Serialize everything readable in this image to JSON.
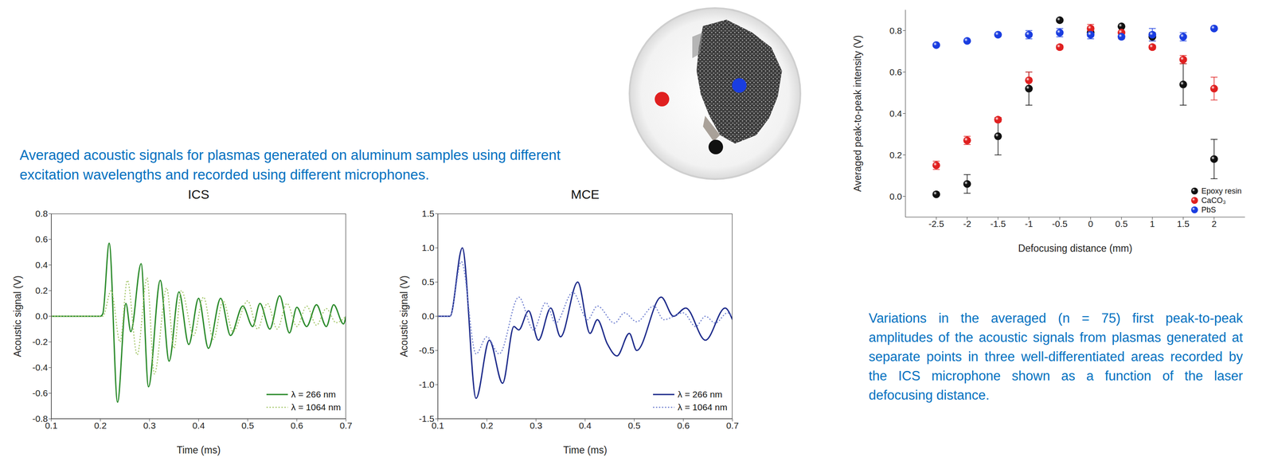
{
  "caption_left": "Averaged acoustic signals for plasmas generated on aluminum samples using different excitation wavelengths and recorded using different microphones.",
  "caption_right": "Variations in the averaged (n = 75) first peak-to-peak amplitudes of the acoustic signals from plasmas generated at separate points in three well-differentiated areas recorded by the ICS microphone shown as a function of the laser defocusing distance.",
  "chart_data": [
    {
      "type": "line",
      "title": "ICS",
      "x_label": "Time (ms)",
      "y_label": "Acoustic signal (V)",
      "xlim": [
        0.1,
        0.7
      ],
      "xticks": [
        0.1,
        0.2,
        0.3,
        0.4,
        0.5,
        0.6,
        0.7
      ],
      "ylim": [
        -0.8,
        0.8
      ],
      "yticks": [
        -0.8,
        -0.6,
        -0.4,
        -0.2,
        {
          "value": 0,
          "label": "0.0"
        },
        0.2,
        0.4,
        0.6,
        0.8
      ],
      "grid": false,
      "legend": "lower right",
      "series": [
        {
          "name": "λ = 266 nm",
          "color": "#2a8a2a",
          "line_style": "solid",
          "x": [
            0.1,
            0.2,
            0.205,
            0.218,
            0.235,
            0.252,
            0.262,
            0.283,
            0.298,
            0.322,
            0.34,
            0.36,
            0.38,
            0.4,
            0.42,
            0.445,
            0.465,
            0.49,
            0.51,
            0.525,
            0.545,
            0.565,
            0.585,
            0.6,
            0.62,
            0.64,
            0.66,
            0.675,
            0.695,
            0.7
          ],
          "values": [
            0,
            0,
            0.02,
            0.57,
            -0.67,
            0.1,
            -0.12,
            0.41,
            -0.55,
            0.28,
            -0.35,
            0.19,
            -0.22,
            0.14,
            -0.25,
            0.14,
            -0.15,
            0.08,
            -0.08,
            0.1,
            -0.1,
            0.16,
            -0.13,
            0.07,
            -0.08,
            0.09,
            -0.08,
            0.09,
            -0.06,
            0.0
          ]
        },
        {
          "name": "λ = 1064 nm",
          "color": "#a5c76a",
          "line_style": "dotted",
          "x": [
            0.1,
            0.205,
            0.222,
            0.24,
            0.255,
            0.275,
            0.295,
            0.31,
            0.335,
            0.35,
            0.365,
            0.39,
            0.41,
            0.43,
            0.45,
            0.47,
            0.5,
            0.52,
            0.54,
            0.56,
            0.58,
            0.6,
            0.62,
            0.64,
            0.66,
            0.68,
            0.7
          ],
          "values": [
            0,
            0,
            0.2,
            -0.2,
            0.28,
            -0.3,
            0.3,
            -0.45,
            0.22,
            -0.25,
            0.2,
            -0.15,
            0.15,
            -0.18,
            0.12,
            -0.12,
            0.12,
            -0.1,
            0.1,
            -0.1,
            0.1,
            -0.08,
            0.08,
            -0.07,
            0.06,
            -0.05,
            0.0
          ]
        }
      ]
    },
    {
      "type": "line",
      "title": "MCE",
      "x_label": "Time (ms)",
      "y_label": "Acoustic signal (V)",
      "xlim": [
        0.1,
        0.7
      ],
      "xticks": [
        0.1,
        0.2,
        0.3,
        0.4,
        0.5,
        0.6,
        0.7
      ],
      "ylim": [
        -1.5,
        1.5
      ],
      "yticks": [
        -1.5,
        {
          "value": -1,
          "label": "-1.0"
        },
        -0.5,
        {
          "value": 0,
          "label": "0.0"
        },
        0.5,
        {
          "value": 1,
          "label": "1.0"
        },
        1.5
      ],
      "grid": false,
      "legend": "lower right",
      "series": [
        {
          "name": "λ = 266 nm",
          "color": "#1c2a8a",
          "line_style": "solid",
          "x": [
            0.1,
            0.125,
            0.15,
            0.178,
            0.205,
            0.232,
            0.255,
            0.265,
            0.285,
            0.305,
            0.33,
            0.35,
            0.385,
            0.41,
            0.425,
            0.445,
            0.465,
            0.49,
            0.505,
            0.555,
            0.58,
            0.605,
            0.645,
            0.685,
            0.7
          ],
          "values": [
            0,
            0,
            1.0,
            -1.2,
            -0.35,
            -0.98,
            -0.15,
            -0.2,
            0.08,
            -0.35,
            0.12,
            -0.3,
            0.5,
            -0.25,
            -0.05,
            -0.4,
            -0.58,
            -0.25,
            -0.5,
            0.28,
            0.0,
            0.12,
            -0.35,
            0.12,
            -0.05
          ]
        },
        {
          "name": "λ = 1064 nm",
          "color": "#7080d0",
          "line_style": "dotted",
          "x": [
            0.1,
            0.125,
            0.148,
            0.178,
            0.2,
            0.225,
            0.265,
            0.295,
            0.32,
            0.34,
            0.375,
            0.405,
            0.425,
            0.46,
            0.48,
            0.505,
            0.54,
            0.56,
            0.6,
            0.625,
            0.645,
            0.665,
            0.69,
            0.7
          ],
          "values": [
            0,
            0,
            0.8,
            -0.55,
            -0.3,
            -0.55,
            0.28,
            -0.2,
            0.2,
            -0.1,
            0.35,
            -0.05,
            0.15,
            -0.1,
            0.05,
            -0.08,
            0.15,
            -0.05,
            0.05,
            -0.15,
            0.0,
            -0.1,
            0.05,
            0.0
          ]
        }
      ]
    },
    {
      "type": "scatter",
      "x_label": "Defocusing distance (mm)",
      "y_label": "Averaged peak-to-peak intensity (V)",
      "xlim": [
        -3,
        2.5
      ],
      "xticks": [
        -2.5,
        -2,
        -1.5,
        -1,
        -0.5,
        0,
        0.5,
        1,
        1.5,
        2
      ],
      "ylim": [
        -0.1,
        0.9
      ],
      "yticks": [
        {
          "value": 0,
          "label": "0.0"
        },
        0.2,
        0.4,
        0.6,
        0.8
      ],
      "grid": false,
      "legend": "lower right",
      "x": [
        -2.5,
        -2,
        -1.5,
        -1,
        -0.5,
        0,
        0.5,
        1,
        1.5,
        2
      ],
      "series": [
        {
          "name": "Epoxy resin",
          "color": "#111111",
          "marker": "sphere",
          "values": [
            0.01,
            0.06,
            0.29,
            0.52,
            0.85,
            0.79,
            0.82,
            0.77,
            0.54,
            0.18
          ],
          "errors": [
            null,
            0.045,
            0.09,
            0.08,
            null,
            null,
            null,
            0.02,
            0.1,
            0.095
          ]
        },
        {
          "name": "CaCO₃",
          "color": "#e02020",
          "marker": "sphere",
          "values": [
            0.15,
            0.27,
            0.37,
            0.56,
            0.72,
            0.81,
            0.79,
            0.72,
            0.66,
            0.52
          ],
          "errors": [
            0.02,
            0.02,
            0.01,
            0.04,
            0.01,
            0.02,
            0.03,
            0.01,
            0.02,
            0.055
          ]
        },
        {
          "name": "PbS",
          "color": "#1a3de0",
          "marker": "sphere",
          "values": [
            0.73,
            0.75,
            0.78,
            0.78,
            0.79,
            0.78,
            0.77,
            0.78,
            0.77,
            0.81
          ],
          "errors": [
            null,
            null,
            null,
            0.02,
            0.02,
            0.02,
            null,
            0.03,
            0.02,
            null
          ]
        }
      ]
    }
  ]
}
